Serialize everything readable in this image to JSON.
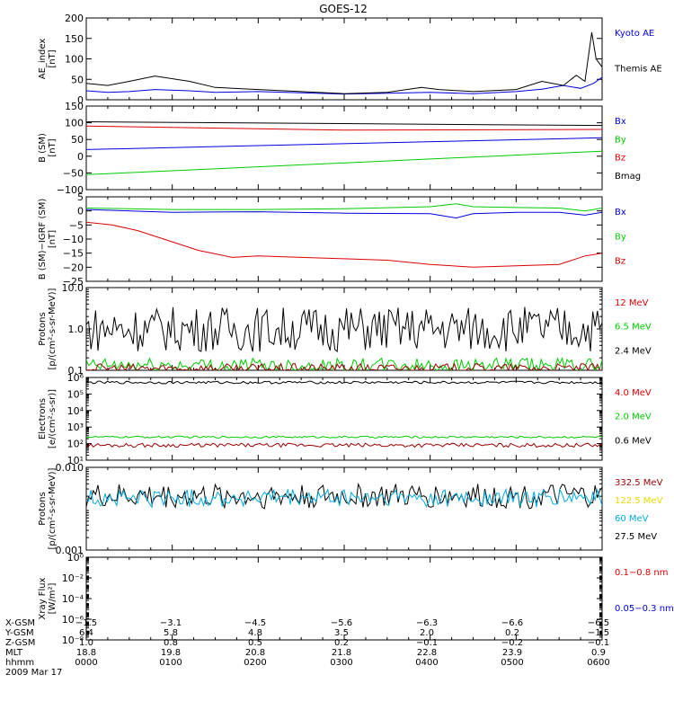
{
  "title": "GOES-12",
  "date_label": "2009 Mar 17",
  "colors": {
    "black": "#000000",
    "red": "#dd0000",
    "green": "#00cc00",
    "blue": "#0000dd",
    "darkred": "#990000",
    "yellow": "#e8d800",
    "cyan": "#00aadd"
  },
  "chart_data": [
    {
      "type": "line",
      "panel": "ae_index",
      "ylabel": [
        "AE_index",
        "[nT]"
      ],
      "ylim": [
        0,
        200
      ],
      "yscale": "linear",
      "yticks": [
        "0",
        "50",
        "100",
        "150",
        "200"
      ],
      "legend": [
        {
          "text": "Kyoto AE",
          "color": "blue"
        },
        {
          "text": "Themis AE",
          "color": "black"
        }
      ],
      "series": [
        {
          "name": "Kyoto AE",
          "color": "blue",
          "x": [
            0,
            0.25,
            0.5,
            0.8,
            1.2,
            1.5,
            2,
            2.5,
            3,
            3.5,
            4,
            4.5,
            5,
            5.3,
            5.55,
            5.75,
            5.9,
            6
          ],
          "y": [
            22,
            18,
            20,
            25,
            22,
            18,
            20,
            17,
            14,
            16,
            18,
            15,
            20,
            26,
            35,
            28,
            40,
            55
          ]
        },
        {
          "name": "Themis AE",
          "color": "black",
          "x": [
            0,
            0.25,
            0.5,
            0.8,
            1.2,
            1.5,
            2,
            2.5,
            3,
            3.5,
            3.9,
            4.1,
            4.5,
            5,
            5.3,
            5.55,
            5.7,
            5.8,
            5.88,
            5.93,
            6
          ],
          "y": [
            40,
            35,
            45,
            58,
            45,
            30,
            25,
            20,
            15,
            18,
            30,
            25,
            20,
            25,
            45,
            35,
            60,
            45,
            165,
            100,
            80
          ]
        }
      ]
    },
    {
      "type": "line",
      "panel": "b_sm",
      "ylabel": [
        "B (SM)",
        "[nT]"
      ],
      "ylim": [
        -100,
        150
      ],
      "yscale": "linear",
      "yticks": [
        "−100",
        "−50",
        "0",
        "50",
        "100",
        "150"
      ],
      "legend": [
        {
          "text": "Bx",
          "color": "blue"
        },
        {
          "text": "By",
          "color": "green"
        },
        {
          "text": "Bz",
          "color": "red"
        },
        {
          "text": "Bmag",
          "color": "black"
        }
      ],
      "series": [
        {
          "name": "Bmag",
          "color": "black",
          "x": [
            0,
            6
          ],
          "y": [
            103,
            92
          ]
        },
        {
          "name": "Bz",
          "color": "red",
          "x": [
            0,
            3,
            6
          ],
          "y": [
            90,
            78,
            80
          ]
        },
        {
          "name": "Bx",
          "color": "blue",
          "x": [
            0,
            6
          ],
          "y": [
            20,
            55
          ]
        },
        {
          "name": "By",
          "color": "green",
          "x": [
            0,
            6
          ],
          "y": [
            -55,
            15
          ]
        }
      ]
    },
    {
      "type": "line",
      "panel": "b_minus_igrf",
      "ylabel": [
        "B (SM)−IGRF (SM)",
        "[nT]"
      ],
      "ylim": [
        -25,
        5
      ],
      "yscale": "linear",
      "yticks": [
        "−25",
        "−20",
        "−15",
        "−10",
        "−5",
        "0",
        "5"
      ],
      "legend": [
        {
          "text": "Bx",
          "color": "blue"
        },
        {
          "text": "By",
          "color": "green"
        },
        {
          "text": "Bz",
          "color": "red"
        }
      ],
      "series": [
        {
          "name": "Bx",
          "color": "blue",
          "x": [
            0,
            1,
            2,
            3,
            4,
            4.3,
            4.5,
            5,
            5.5,
            5.8,
            6
          ],
          "y": [
            0.5,
            -0.5,
            -0.3,
            -0.8,
            -1,
            -2.5,
            -1,
            -0.5,
            -0.5,
            -1.5,
            -0.5
          ]
        },
        {
          "name": "By",
          "color": "green",
          "x": [
            0,
            1,
            2,
            3,
            4,
            4.3,
            4.5,
            5,
            5.5,
            5.8,
            6
          ],
          "y": [
            1,
            0.5,
            0.5,
            0.8,
            1.5,
            2.5,
            1.5,
            1.2,
            1,
            0,
            1
          ]
        },
        {
          "name": "Bz",
          "color": "red",
          "x": [
            0,
            0.3,
            0.6,
            1,
            1.3,
            1.7,
            2,
            2.5,
            3,
            3.5,
            4,
            4.5,
            5,
            5.5,
            5.8,
            6
          ],
          "y": [
            -4,
            -5,
            -7,
            -11,
            -14,
            -16.5,
            -16,
            -16.5,
            -17,
            -17.5,
            -19,
            -20,
            -19.5,
            -19,
            -16,
            -15
          ]
        }
      ]
    },
    {
      "type": "line",
      "panel": "protons_low",
      "ylabel": [
        "Protons",
        "[p/(cm²-s-sr-MeV)]"
      ],
      "ylim": [
        0.1,
        10
      ],
      "yscale": "log",
      "yticks": [
        "0.1",
        "1.0",
        "10.0"
      ],
      "legend": [
        {
          "text": "12 MeV",
          "color": "red"
        },
        {
          "text": "6.5 MeV",
          "color": "green"
        },
        {
          "text": "2.4 MeV",
          "color": "black"
        }
      ],
      "series": [
        {
          "name": "2.4 MeV",
          "color": "black",
          "level": 1.0,
          "spread": 0.55
        },
        {
          "name": "6.5 MeV",
          "color": "green",
          "level": 0.13,
          "spread": 0.18
        },
        {
          "name": "12 MeV",
          "color": "darkred",
          "level": 0.11,
          "spread": 0.12
        }
      ]
    },
    {
      "type": "line",
      "panel": "electrons",
      "ylabel": [
        "Electrons",
        "[e/(cm²-s-sr)]"
      ],
      "ylim": [
        10,
        1000000
      ],
      "yscale": "log",
      "yticks": [
        "10¹",
        "10²",
        "10³",
        "10⁴",
        "10⁵",
        "10⁶"
      ],
      "legend": [
        {
          "text": "4.0 MeV",
          "color": "red"
        },
        {
          "text": "2.0 MeV",
          "color": "green"
        },
        {
          "text": "0.6 MeV",
          "color": "black"
        }
      ],
      "series": [
        {
          "name": "0.6 MeV",
          "color": "black",
          "level": 500000,
          "spread": 0.08
        },
        {
          "name": "2.0 MeV",
          "color": "green",
          "level": 250,
          "spread": 0.06
        },
        {
          "name": "4.0 MeV",
          "color": "darkred",
          "level": 80,
          "spread": 0.12
        }
      ]
    },
    {
      "type": "line",
      "panel": "protons_high",
      "ylabel": [
        "Protons",
        "[p/(cm²-s-sr-MeV)]"
      ],
      "ylim": [
        0.001,
        0.1
      ],
      "yscale": "log",
      "yticks": [
        "0.001",
        "0.010"
      ],
      "legend": [
        {
          "text": "332.5 MeV",
          "color": "darkred"
        },
        {
          "text": "122.5 MeV",
          "color": "yellow"
        },
        {
          "text": "60 MeV",
          "color": "cyan"
        },
        {
          "text": "27.5 MeV",
          "color": "black"
        }
      ],
      "series": [
        {
          "name": "27.5 MeV",
          "color": "black",
          "level": 0.02,
          "spread": 0.3
        },
        {
          "name": "60 MeV",
          "color": "cyan",
          "level": 0.018,
          "spread": 0.22
        }
      ]
    },
    {
      "type": "line",
      "panel": "xray",
      "ylabel": [
        "Xray Flux",
        "[W/m²]"
      ],
      "ylim": [
        1e-09,
        1
      ],
      "yscale": "log",
      "yticks": [
        "10⁻⁸",
        "10⁻⁶",
        "10⁻⁴",
        "10⁻²",
        "10⁰"
      ],
      "legend": [
        {
          "text": "0.1−0.8 nm",
          "color": "red"
        },
        {
          "text": "0.05−0.3 nm",
          "color": "blue"
        }
      ],
      "series": []
    }
  ],
  "ephemeris": {
    "rows": [
      {
        "label": "X-GSM",
        "values": [
          "−1.5",
          "−3.1",
          "−4.5",
          "−5.6",
          "−6.3",
          "−6.6",
          "−6.5"
        ]
      },
      {
        "label": "Y-GSM",
        "values": [
          "6.4",
          "5.8",
          "4.8",
          "3.5",
          "2.0",
          "0.2",
          "−1.5"
        ]
      },
      {
        "label": "Z-GSM",
        "values": [
          "1.0",
          "0.8",
          "0.5",
          "0.2",
          "−0.1",
          "−0.2",
          "−0.1"
        ]
      },
      {
        "label": "MLT",
        "values": [
          "18.8",
          "19.8",
          "20.8",
          "21.8",
          "22.8",
          "23.9",
          "0.9"
        ]
      },
      {
        "label": "hhmm",
        "values": [
          "0000",
          "0100",
          "0200",
          "0300",
          "0400",
          "0500",
          "0600"
        ]
      }
    ]
  }
}
